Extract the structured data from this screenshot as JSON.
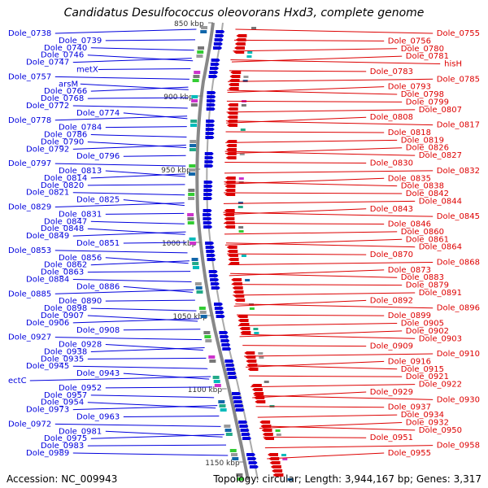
{
  "title": "Candidatus Desulfococcus oleovorans Hxd3, complete genome",
  "accession": "Accession: NC_009943",
  "topology": "Topology: circular; Length: 3,944,167 bp; Genes: 3,317",
  "colors": {
    "forward": "#0000dd",
    "reverse": "#dd0000",
    "backbone": "#888888"
  },
  "scale_labels": [
    "850 kbp",
    "900 kbp",
    "950 kbp",
    "1000 kbp",
    "1050 kbp",
    "1100 kbp",
    "1150 kbp"
  ],
  "left_genes": [
    "Dole_0738",
    "Dole_0739",
    "Dole_0740",
    "Dole_0746",
    "Dole_0747",
    "metX",
    "Dole_0757",
    "arsM",
    "Dole_0766",
    "Dole_0768",
    "Dole_0772",
    "Dole_0774",
    "Dole_0778",
    "Dole_0784",
    "Dole_0786",
    "Dole_0790",
    "Dole_0792",
    "Dole_0796",
    "Dole_0797",
    "Dole_0813",
    "Dole_0814",
    "Dole_0820",
    "Dole_0821",
    "Dole_0825",
    "Dole_0829",
    "Dole_0831",
    "Dole_0847",
    "Dole_0848",
    "Dole_0849",
    "Dole_0851",
    "Dole_0853",
    "Dole_0856",
    "Dole_0862",
    "Dole_0863",
    "Dole_0884",
    "Dole_0886",
    "Dole_0885",
    "Dole_0890",
    "Dole_0898",
    "Dole_0907",
    "Dole_0906",
    "Dole_0908",
    "Dole_0927",
    "Dole_0928",
    "Dole_0938",
    "Dole_0935",
    "Dole_0945",
    "Dole_0943",
    "ectC",
    "Dole_0952",
    "Dole_0957",
    "Dole_0954",
    "Dole_0973",
    "Dole_0963",
    "Dole_0972",
    "Dole_0981",
    "Dole_0975",
    "Dole_0983",
    "Dole_0989"
  ],
  "right_genes": [
    "Dole_0755",
    "Dole_0756",
    "Dole_0780",
    "Dole_0781",
    "hisH",
    "Dole_0783",
    "Dole_0785",
    "Dole_0793",
    "Dole_0798",
    "Dole_0799",
    "Dole_0807",
    "Dole_0808",
    "Dole_0817",
    "Dole_0818",
    "Dole_0819",
    "Dole_0826",
    "Dole_0827",
    "Dole_0830",
    "Dole_0832",
    "Dole_0835",
    "Dole_0838",
    "Dole_0842",
    "Dole_0844",
    "Dole_0843",
    "Dole_0845",
    "Dole_0846",
    "Dole_0860",
    "Dole_0861",
    "Dole_0864",
    "Dole_0870",
    "Dole_0868",
    "Dole_0873",
    "Dole_0883",
    "Dole_0879",
    "Dole_0891",
    "Dole_0892",
    "Dole_0896",
    "Dole_0899",
    "Dole_0905",
    "Dole_0902",
    "Dole_0903",
    "Dole_0909",
    "Dole_0910",
    "Dole_0916",
    "Dole_0915",
    "Dole_0921",
    "Dole_0922",
    "Dole_0929",
    "Dole_0930",
    "Dole_0937",
    "Dole_0934",
    "Dole_0932",
    "Dole_0950",
    "Dole_0951",
    "Dole_0958",
    "Dole_0955"
  ]
}
